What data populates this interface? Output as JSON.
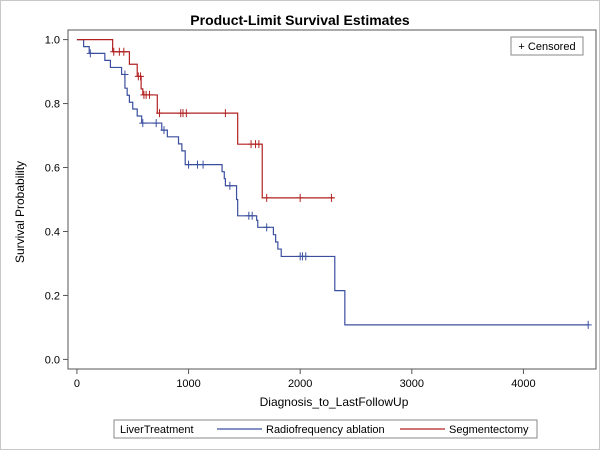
{
  "chart_data": {
    "type": "line",
    "title": "Product-Limit Survival Estimates",
    "xlabel": "Diagnosis_to_LastFollowUp",
    "ylabel": "Survival Probability",
    "xlim": [
      -80,
      4650
    ],
    "ylim": [
      -0.03,
      1.03
    ],
    "xticks": [
      0,
      1000,
      2000,
      3000,
      4000
    ],
    "xtick_labels": [
      "0",
      "1000",
      "2000",
      "3000",
      "4000"
    ],
    "yticks": [
      0.0,
      0.2,
      0.4,
      0.6,
      0.8,
      1.0
    ],
    "ytick_labels": [
      "0.0",
      "0.2",
      "0.4",
      "0.6",
      "0.8",
      "1.0"
    ],
    "grid": false,
    "inset_legend": "+ Censored",
    "legend_title": "LiverTreatment",
    "series": [
      {
        "name": "Radiofrequency ablation",
        "color": "#3b4fa0",
        "steps": [
          [
            0,
            1.0
          ],
          [
            60,
            0.978
          ],
          [
            110,
            0.957
          ],
          [
            250,
            0.935
          ],
          [
            300,
            0.913
          ],
          [
            400,
            0.891
          ],
          [
            430,
            0.848
          ],
          [
            450,
            0.826
          ],
          [
            470,
            0.804
          ],
          [
            500,
            0.783
          ],
          [
            540,
            0.761
          ],
          [
            580,
            0.739
          ],
          [
            760,
            0.717
          ],
          [
            810,
            0.696
          ],
          [
            910,
            0.674
          ],
          [
            940,
            0.652
          ],
          [
            970,
            0.609
          ],
          [
            1300,
            0.587
          ],
          [
            1320,
            0.565
          ],
          [
            1330,
            0.543
          ],
          [
            1430,
            0.5
          ],
          [
            1440,
            0.449
          ],
          [
            1610,
            0.435
          ],
          [
            1620,
            0.413
          ],
          [
            1760,
            0.39
          ],
          [
            1780,
            0.367
          ],
          [
            1800,
            0.345
          ],
          [
            1830,
            0.322
          ],
          [
            2310,
            0.215
          ],
          [
            2400,
            0.108
          ]
        ],
        "end_x": 4580,
        "censored": [
          [
            120,
            0.957
          ],
          [
            430,
            0.891
          ],
          [
            590,
            0.739
          ],
          [
            710,
            0.739
          ],
          [
            780,
            0.717
          ],
          [
            1000,
            0.609
          ],
          [
            1080,
            0.609
          ],
          [
            1130,
            0.609
          ],
          [
            1370,
            0.543
          ],
          [
            1540,
            0.449
          ],
          [
            1570,
            0.449
          ],
          [
            1700,
            0.413
          ],
          [
            2000,
            0.322
          ],
          [
            2020,
            0.322
          ],
          [
            2050,
            0.322
          ],
          [
            4580,
            0.108
          ]
        ]
      },
      {
        "name": "Segmentectomy",
        "color": "#b22222",
        "steps": [
          [
            0,
            1.0
          ],
          [
            320,
            0.962
          ],
          [
            470,
            0.923
          ],
          [
            540,
            0.885
          ],
          [
            575,
            0.846
          ],
          [
            590,
            0.827
          ],
          [
            720,
            0.77
          ],
          [
            1440,
            0.673
          ],
          [
            1660,
            0.505
          ]
        ],
        "end_x": 2300,
        "censored": [
          [
            330,
            0.962
          ],
          [
            380,
            0.962
          ],
          [
            420,
            0.962
          ],
          [
            550,
            0.885
          ],
          [
            570,
            0.885
          ],
          [
            600,
            0.827
          ],
          [
            620,
            0.827
          ],
          [
            650,
            0.827
          ],
          [
            740,
            0.77
          ],
          [
            930,
            0.77
          ],
          [
            950,
            0.77
          ],
          [
            980,
            0.77
          ],
          [
            1330,
            0.77
          ],
          [
            1560,
            0.673
          ],
          [
            1600,
            0.673
          ],
          [
            1630,
            0.673
          ],
          [
            1700,
            0.505
          ],
          [
            2000,
            0.505
          ],
          [
            2280,
            0.505
          ]
        ]
      }
    ]
  }
}
